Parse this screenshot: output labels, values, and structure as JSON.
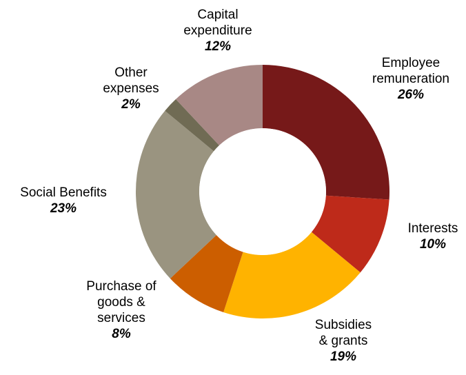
{
  "chart_data": {
    "type": "pie",
    "variant": "donut",
    "start_angle": "12 o'clock",
    "direction": "clockwise",
    "slices": [
      {
        "label_lines": [
          "Employee",
          "remuneration"
        ],
        "value": 26,
        "value_label": "26%",
        "color": "#761919"
      },
      {
        "label_lines": [
          "Interests"
        ],
        "value": 10,
        "value_label": "10%",
        "color": "#BE2A1A"
      },
      {
        "label_lines": [
          "Subsidies",
          "& grants"
        ],
        "value": 19,
        "value_label": "19%",
        "color": "#FFB300"
      },
      {
        "label_lines": [
          "Purchase of",
          "goods &",
          "services"
        ],
        "value": 8,
        "value_label": "8%",
        "color": "#CC5E00"
      },
      {
        "label_lines": [
          "Social Benefits"
        ],
        "value": 23,
        "value_label": "23%",
        "color": "#9A9480"
      },
      {
        "label_lines": [
          "Other",
          "expenses"
        ],
        "value": 2,
        "value_label": "2%",
        "color": "#706B54"
      },
      {
        "label_lines": [
          "Capital",
          "expenditure"
        ],
        "value": 12,
        "value_label": "12%",
        "color": "#A88885"
      }
    ]
  }
}
